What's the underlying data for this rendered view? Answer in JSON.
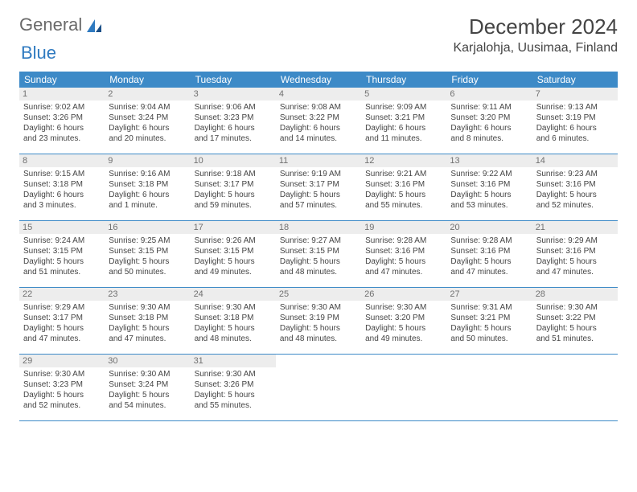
{
  "brand": {
    "part1": "General",
    "part2": "Blue"
  },
  "title": "December 2024",
  "location": "Karjalohja, Uusimaa, Finland",
  "colors": {
    "header_bg": "#3d8ac7",
    "header_text": "#ffffff",
    "daynum_bg": "#ededed",
    "daynum_text": "#707070",
    "body_text": "#444444",
    "rule": "#3d8ac7"
  },
  "weekdays": [
    "Sunday",
    "Monday",
    "Tuesday",
    "Wednesday",
    "Thursday",
    "Friday",
    "Saturday"
  ],
  "weeks": [
    [
      {
        "n": "1",
        "sunrise": "Sunrise: 9:02 AM",
        "sunset": "Sunset: 3:26 PM",
        "dl1": "Daylight: 6 hours",
        "dl2": "and 23 minutes."
      },
      {
        "n": "2",
        "sunrise": "Sunrise: 9:04 AM",
        "sunset": "Sunset: 3:24 PM",
        "dl1": "Daylight: 6 hours",
        "dl2": "and 20 minutes."
      },
      {
        "n": "3",
        "sunrise": "Sunrise: 9:06 AM",
        "sunset": "Sunset: 3:23 PM",
        "dl1": "Daylight: 6 hours",
        "dl2": "and 17 minutes."
      },
      {
        "n": "4",
        "sunrise": "Sunrise: 9:08 AM",
        "sunset": "Sunset: 3:22 PM",
        "dl1": "Daylight: 6 hours",
        "dl2": "and 14 minutes."
      },
      {
        "n": "5",
        "sunrise": "Sunrise: 9:09 AM",
        "sunset": "Sunset: 3:21 PM",
        "dl1": "Daylight: 6 hours",
        "dl2": "and 11 minutes."
      },
      {
        "n": "6",
        "sunrise": "Sunrise: 9:11 AM",
        "sunset": "Sunset: 3:20 PM",
        "dl1": "Daylight: 6 hours",
        "dl2": "and 8 minutes."
      },
      {
        "n": "7",
        "sunrise": "Sunrise: 9:13 AM",
        "sunset": "Sunset: 3:19 PM",
        "dl1": "Daylight: 6 hours",
        "dl2": "and 6 minutes."
      }
    ],
    [
      {
        "n": "8",
        "sunrise": "Sunrise: 9:15 AM",
        "sunset": "Sunset: 3:18 PM",
        "dl1": "Daylight: 6 hours",
        "dl2": "and 3 minutes."
      },
      {
        "n": "9",
        "sunrise": "Sunrise: 9:16 AM",
        "sunset": "Sunset: 3:18 PM",
        "dl1": "Daylight: 6 hours",
        "dl2": "and 1 minute."
      },
      {
        "n": "10",
        "sunrise": "Sunrise: 9:18 AM",
        "sunset": "Sunset: 3:17 PM",
        "dl1": "Daylight: 5 hours",
        "dl2": "and 59 minutes."
      },
      {
        "n": "11",
        "sunrise": "Sunrise: 9:19 AM",
        "sunset": "Sunset: 3:17 PM",
        "dl1": "Daylight: 5 hours",
        "dl2": "and 57 minutes."
      },
      {
        "n": "12",
        "sunrise": "Sunrise: 9:21 AM",
        "sunset": "Sunset: 3:16 PM",
        "dl1": "Daylight: 5 hours",
        "dl2": "and 55 minutes."
      },
      {
        "n": "13",
        "sunrise": "Sunrise: 9:22 AM",
        "sunset": "Sunset: 3:16 PM",
        "dl1": "Daylight: 5 hours",
        "dl2": "and 53 minutes."
      },
      {
        "n": "14",
        "sunrise": "Sunrise: 9:23 AM",
        "sunset": "Sunset: 3:16 PM",
        "dl1": "Daylight: 5 hours",
        "dl2": "and 52 minutes."
      }
    ],
    [
      {
        "n": "15",
        "sunrise": "Sunrise: 9:24 AM",
        "sunset": "Sunset: 3:15 PM",
        "dl1": "Daylight: 5 hours",
        "dl2": "and 51 minutes."
      },
      {
        "n": "16",
        "sunrise": "Sunrise: 9:25 AM",
        "sunset": "Sunset: 3:15 PM",
        "dl1": "Daylight: 5 hours",
        "dl2": "and 50 minutes."
      },
      {
        "n": "17",
        "sunrise": "Sunrise: 9:26 AM",
        "sunset": "Sunset: 3:15 PM",
        "dl1": "Daylight: 5 hours",
        "dl2": "and 49 minutes."
      },
      {
        "n": "18",
        "sunrise": "Sunrise: 9:27 AM",
        "sunset": "Sunset: 3:15 PM",
        "dl1": "Daylight: 5 hours",
        "dl2": "and 48 minutes."
      },
      {
        "n": "19",
        "sunrise": "Sunrise: 9:28 AM",
        "sunset": "Sunset: 3:16 PM",
        "dl1": "Daylight: 5 hours",
        "dl2": "and 47 minutes."
      },
      {
        "n": "20",
        "sunrise": "Sunrise: 9:28 AM",
        "sunset": "Sunset: 3:16 PM",
        "dl1": "Daylight: 5 hours",
        "dl2": "and 47 minutes."
      },
      {
        "n": "21",
        "sunrise": "Sunrise: 9:29 AM",
        "sunset": "Sunset: 3:16 PM",
        "dl1": "Daylight: 5 hours",
        "dl2": "and 47 minutes."
      }
    ],
    [
      {
        "n": "22",
        "sunrise": "Sunrise: 9:29 AM",
        "sunset": "Sunset: 3:17 PM",
        "dl1": "Daylight: 5 hours",
        "dl2": "and 47 minutes."
      },
      {
        "n": "23",
        "sunrise": "Sunrise: 9:30 AM",
        "sunset": "Sunset: 3:18 PM",
        "dl1": "Daylight: 5 hours",
        "dl2": "and 47 minutes."
      },
      {
        "n": "24",
        "sunrise": "Sunrise: 9:30 AM",
        "sunset": "Sunset: 3:18 PM",
        "dl1": "Daylight: 5 hours",
        "dl2": "and 48 minutes."
      },
      {
        "n": "25",
        "sunrise": "Sunrise: 9:30 AM",
        "sunset": "Sunset: 3:19 PM",
        "dl1": "Daylight: 5 hours",
        "dl2": "and 48 minutes."
      },
      {
        "n": "26",
        "sunrise": "Sunrise: 9:30 AM",
        "sunset": "Sunset: 3:20 PM",
        "dl1": "Daylight: 5 hours",
        "dl2": "and 49 minutes."
      },
      {
        "n": "27",
        "sunrise": "Sunrise: 9:31 AM",
        "sunset": "Sunset: 3:21 PM",
        "dl1": "Daylight: 5 hours",
        "dl2": "and 50 minutes."
      },
      {
        "n": "28",
        "sunrise": "Sunrise: 9:30 AM",
        "sunset": "Sunset: 3:22 PM",
        "dl1": "Daylight: 5 hours",
        "dl2": "and 51 minutes."
      }
    ],
    [
      {
        "n": "29",
        "sunrise": "Sunrise: 9:30 AM",
        "sunset": "Sunset: 3:23 PM",
        "dl1": "Daylight: 5 hours",
        "dl2": "and 52 minutes."
      },
      {
        "n": "30",
        "sunrise": "Sunrise: 9:30 AM",
        "sunset": "Sunset: 3:24 PM",
        "dl1": "Daylight: 5 hours",
        "dl2": "and 54 minutes."
      },
      {
        "n": "31",
        "sunrise": "Sunrise: 9:30 AM",
        "sunset": "Sunset: 3:26 PM",
        "dl1": "Daylight: 5 hours",
        "dl2": "and 55 minutes."
      },
      null,
      null,
      null,
      null
    ]
  ]
}
